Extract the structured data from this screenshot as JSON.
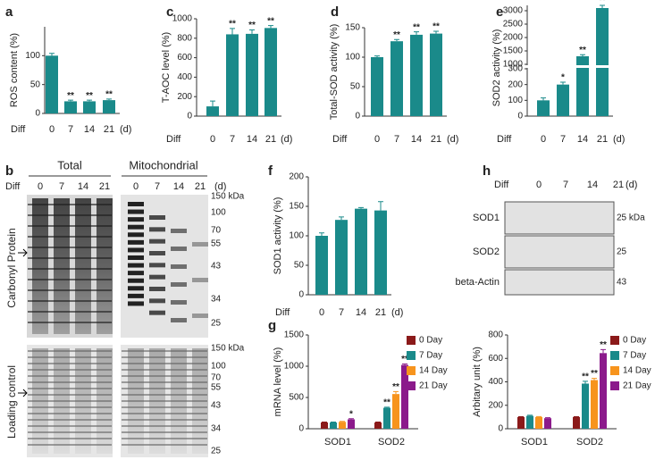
{
  "chart_data": [
    {
      "type": "bar",
      "panel": "a",
      "y_label": "ROS content (%)",
      "x_prefix": "Diff",
      "x_suffix": "(d)",
      "categories": [
        "0",
        "7",
        "14",
        "21"
      ],
      "values": [
        100,
        21,
        21,
        23
      ],
      "errors": [
        4,
        2,
        2,
        2
      ],
      "significance": [
        null,
        "**",
        "**",
        "**"
      ],
      "color": "#1a8a8a",
      "ylim": [
        0,
        150
      ],
      "yticks": [
        0,
        50,
        100
      ]
    },
    {
      "type": "bar",
      "panel": "c",
      "y_label": "T-AOC level (%)",
      "x_prefix": "Diff",
      "x_suffix": "(d)",
      "categories": [
        "0",
        "7",
        "14",
        "21"
      ],
      "values": [
        100,
        840,
        845,
        905
      ],
      "errors": [
        55,
        60,
        40,
        25
      ],
      "significance": [
        null,
        "**",
        "**",
        "**"
      ],
      "color": "#1a8a8a",
      "ylim": [
        0,
        1000
      ],
      "yticks": [
        0,
        200,
        400,
        600,
        800,
        1000
      ]
    },
    {
      "type": "bar",
      "panel": "d",
      "y_label": "Total-SOD activity (%)",
      "x_prefix": "Diff",
      "x_suffix": "(d)",
      "categories": [
        "0",
        "7",
        "14",
        "21"
      ],
      "values": [
        100,
        127,
        138,
        140
      ],
      "errors": [
        2,
        3,
        5,
        4
      ],
      "significance": [
        null,
        "**",
        "**",
        "**"
      ],
      "color": "#1a8a8a",
      "ylim": [
        0,
        150
      ],
      "yticks": [
        0,
        50,
        100,
        150
      ]
    },
    {
      "type": "bar",
      "panel": "e",
      "y_label": "SOD2 activity (%)",
      "x_prefix": "Diff",
      "x_suffix": "(d)",
      "categories": [
        "0",
        "7",
        "14",
        "21"
      ],
      "values": [
        100,
        200,
        1300,
        3100
      ],
      "errors": [
        15,
        15,
        60,
        100
      ],
      "significance": [
        null,
        "*",
        "**",
        "**"
      ],
      "color": "#1a8a8a",
      "ylim": [
        0,
        3200
      ],
      "axis_break": [
        300,
        1000
      ],
      "yticks": [
        0,
        100,
        200,
        300,
        1000,
        1500,
        2000,
        2500,
        3000
      ]
    },
    {
      "type": "bar",
      "panel": "f",
      "y_label": "SOD1 activity (%)",
      "x_prefix": "Diff",
      "x_suffix": "(d)",
      "categories": [
        "0",
        "7",
        "14",
        "21"
      ],
      "values": [
        100,
        127,
        146,
        143
      ],
      "errors": [
        5,
        5,
        2,
        15
      ],
      "color": "#1a8a8a",
      "ylim": [
        0,
        200
      ],
      "yticks": [
        0,
        50,
        100,
        150,
        200
      ]
    },
    {
      "type": "grouped_bar",
      "panel": "g",
      "y_label": "mRNA level (%)",
      "categories": [
        "SOD1",
        "SOD2"
      ],
      "ylim": [
        0,
        1500
      ],
      "yticks": [
        0,
        500,
        1000,
        1500
      ],
      "series": [
        {
          "name": "0 Day",
          "color": "#8b1a1a",
          "values": [
            100,
            100
          ],
          "errors": [
            8,
            8
          ],
          "significance": [
            null,
            null
          ]
        },
        {
          "name": "7 Day",
          "color": "#1a8a8a",
          "values": [
            100,
            335
          ],
          "errors": [
            8,
            10
          ],
          "significance": [
            null,
            "**"
          ]
        },
        {
          "name": "14 Day",
          "color": "#f7941d",
          "values": [
            110,
            555
          ],
          "errors": [
            8,
            40
          ],
          "significance": [
            null,
            "**"
          ]
        },
        {
          "name": "21 Day",
          "color": "#8b1a8b",
          "values": [
            150,
            1020
          ],
          "errors": [
            10,
            15
          ],
          "significance": [
            "*",
            "**"
          ]
        }
      ]
    },
    {
      "type": "grouped_bar",
      "y_label": "Arbitary unit (%)",
      "categories": [
        "SOD1",
        "SOD2"
      ],
      "ylim": [
        0,
        800
      ],
      "yticks": [
        0,
        200,
        400,
        600,
        800
      ],
      "series": [
        {
          "name": "0 Day",
          "color": "#8b1a1a",
          "values": [
            100,
            100
          ],
          "errors": [
            3,
            3
          ],
          "significance": [
            null,
            null
          ]
        },
        {
          "name": "7 Day",
          "color": "#1a8a8a",
          "values": [
            110,
            385
          ],
          "errors": [
            5,
            20
          ],
          "significance": [
            null,
            "**"
          ]
        },
        {
          "name": "14 Day",
          "color": "#f7941d",
          "values": [
            100,
            415
          ],
          "errors": [
            4,
            15
          ],
          "significance": [
            null,
            "**"
          ]
        },
        {
          "name": "21 Day",
          "color": "#8b1a8b",
          "values": [
            90,
            645
          ],
          "errors": [
            4,
            30
          ],
          "significance": [
            null,
            "**"
          ]
        }
      ]
    }
  ],
  "blots": {
    "b": {
      "panel": "b",
      "groups": [
        "Total",
        "Mitochondrial"
      ],
      "diff": "Diff",
      "lanes": [
        "0",
        "7",
        "14",
        "21"
      ],
      "unit": "(d)",
      "top_label": "Carbonyl Protein",
      "bottom_label": "Loading control",
      "markers": [
        "150 kDa",
        "100",
        "70",
        "55",
        "43",
        "34",
        "25"
      ]
    },
    "h": {
      "panel": "h",
      "diff": "Diff",
      "lanes": [
        "0",
        "7",
        "14",
        "21"
      ],
      "unit": "(d)",
      "rows": [
        "SOD1",
        "SOD2",
        "beta-Actin"
      ],
      "markers": [
        "25 kDa",
        "25",
        "43"
      ]
    }
  }
}
